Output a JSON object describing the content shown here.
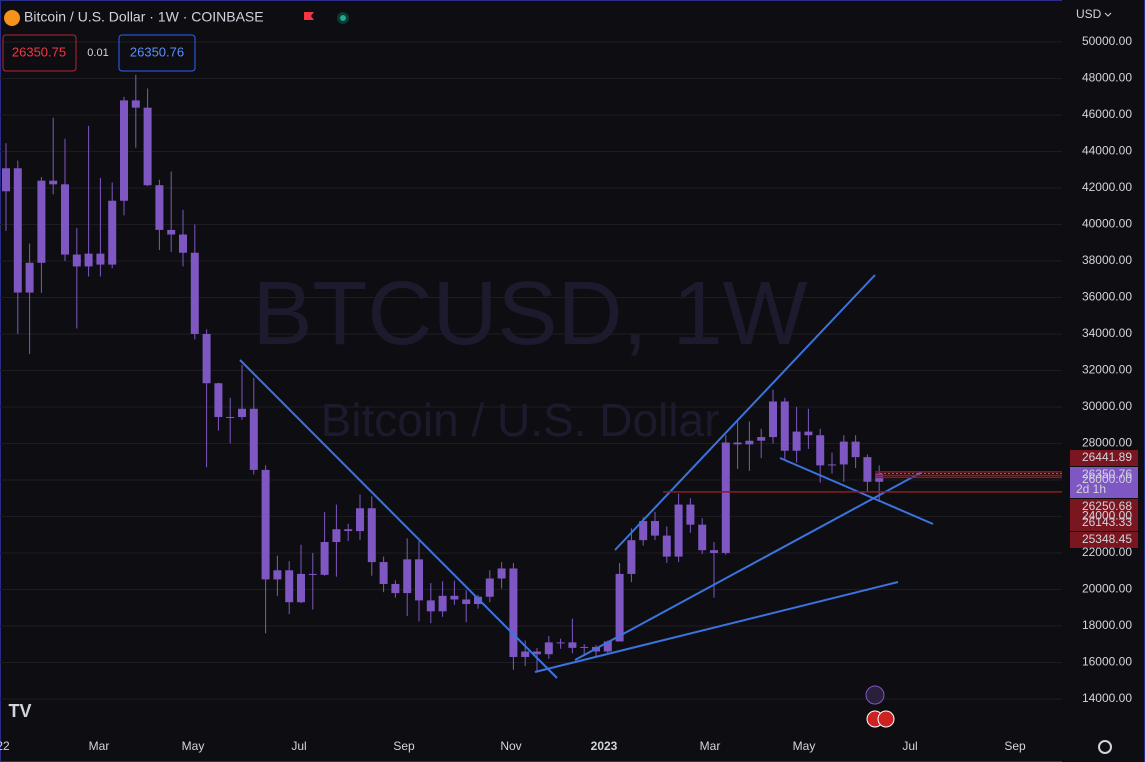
{
  "header": {
    "title": "Bitcoin / U.S. Dollar · 1W · COINBASE",
    "currency": "USD",
    "bid": 26350.75,
    "spread": 0.01,
    "ask": 26350.76
  },
  "watermark": {
    "symbol": "BTCUSD, 1W",
    "name": "Bitcoin / U.S. Dollar"
  },
  "chart_data": {
    "type": "candlestick",
    "color": "#7e57c2",
    "open": [
      41820,
      43080,
      36270,
      37900,
      42400,
      42200,
      38350,
      37700,
      38400,
      37800,
      41300,
      46800,
      46400,
      42150,
      39700,
      39450,
      38450,
      34000,
      31300,
      29450,
      29450,
      29900,
      26550,
      20550,
      21050,
      19300,
      20850,
      20800,
      22600,
      23300,
      23200,
      24450,
      21500,
      20300,
      19800,
      21650,
      19400,
      18800,
      19650,
      19450,
      19200,
      19600,
      20600,
      21150,
      16300,
      16600,
      16450,
      17100,
      17100,
      16800,
      16850,
      16600,
      17150,
      20850,
      22700,
      23750,
      22950,
      21800,
      24650,
      23550,
      22150,
      22000,
      28050,
      27950,
      28150,
      28350,
      30300,
      27600,
      28650,
      28450,
      26800,
      26850,
      28100,
      27250,
      25900
    ],
    "high": [
      44460,
      43500,
      38950,
      42600,
      45850,
      44700,
      39800,
      45400,
      42550,
      42300,
      47000,
      48200,
      47450,
      42450,
      42900,
      40800,
      40000,
      34250,
      31330,
      30500,
      32300,
      31600,
      26800,
      21850,
      21550,
      22450,
      22000,
      24250,
      24650,
      23600,
      25200,
      25100,
      21800,
      20500,
      22800,
      22650,
      20350,
      20450,
      20480,
      19950,
      19700,
      21050,
      21500,
      21450,
      17200,
      16800,
      17450,
      17300,
      18400,
      17000,
      16950,
      17200,
      21450,
      23350,
      23950,
      24250,
      23450,
      25250,
      25000,
      23900,
      22600,
      28450,
      29200,
      29200,
      28800,
      30950,
      30500,
      30000,
      29900,
      28800,
      27500,
      28450,
      28450,
      27400,
      26800
    ],
    "low": [
      39650,
      34000,
      32900,
      36250,
      41650,
      38000,
      34300,
      37150,
      37150,
      37600,
      40500,
      44200,
      42100,
      38600,
      38500,
      37700,
      33700,
      26700,
      28700,
      28000,
      29300,
      26300,
      17600,
      19650,
      18650,
      19250,
      18900,
      20750,
      20700,
      22650,
      22700,
      20750,
      19850,
      19550,
      18550,
      18250,
      18150,
      18500,
      19150,
      18200,
      18950,
      19300,
      20050,
      15600,
      15800,
      15500,
      16200,
      16750,
      16500,
      16350,
      16350,
      16500,
      17150,
      20400,
      22400,
      22700,
      21450,
      21500,
      23100,
      21950,
      19550,
      21900,
      26600,
      26500,
      27200,
      28000,
      27150,
      26950,
      27700,
      25850,
      26350,
      25900,
      26650,
      25350,
      24800
    ],
    "close": [
      43080,
      36270,
      37900,
      42400,
      42200,
      38350,
      37700,
      38400,
      37800,
      41300,
      46800,
      46400,
      42150,
      39700,
      39450,
      38450,
      34000,
      31300,
      29450,
      29450,
      29900,
      26550,
      20550,
      21050,
      19300,
      20850,
      20800,
      22600,
      23300,
      23200,
      24450,
      21500,
      20300,
      19800,
      21650,
      19400,
      18800,
      19650,
      19450,
      19200,
      19600,
      20600,
      21150,
      16300,
      16600,
      16450,
      17100,
      17100,
      16800,
      16850,
      16600,
      17150,
      20850,
      22700,
      23750,
      22950,
      21800,
      24650,
      23550,
      22150,
      22000,
      28050,
      27950,
      28150,
      28350,
      30300,
      27600,
      28650,
      28450,
      26800,
      26850,
      28100,
      27250,
      25900,
      26350.76
    ],
    "ylim": [
      11750,
      52300
    ],
    "yticks": [
      {
        "value": 14000,
        "label": "14000.00"
      },
      {
        "value": 16000,
        "label": "16000.00"
      },
      {
        "value": 18000,
        "label": "18000.00"
      },
      {
        "value": 20000,
        "label": "20000.00"
      },
      {
        "value": 22000,
        "label": "22000.00"
      },
      {
        "value": 24000,
        "label": "24000.00"
      },
      {
        "value": 26000,
        "label": "26000.00"
      },
      {
        "value": 28000,
        "label": "28000.00"
      },
      {
        "value": 30000,
        "label": "30000.00"
      },
      {
        "value": 32000,
        "label": "32000.00"
      },
      {
        "value": 34000,
        "label": "34000.00"
      },
      {
        "value": 36000,
        "label": "36000.00"
      },
      {
        "value": 38000,
        "label": "38000.00"
      },
      {
        "value": 40000,
        "label": "40000.00"
      },
      {
        "value": 42000,
        "label": "42000.00"
      },
      {
        "value": 44000,
        "label": "44000.00"
      },
      {
        "value": 46000,
        "label": "46000.00"
      },
      {
        "value": 48000,
        "label": "48000.00"
      },
      {
        "value": 50000,
        "label": "50000.00"
      }
    ],
    "x_axis_labels": [
      "22",
      "Mar",
      "May",
      "Jul",
      "Sep",
      "Nov",
      "2023",
      "Mar",
      "May",
      "Jul",
      "Sep"
    ],
    "grid": true,
    "price_lines": [
      26441.89,
      26250.68,
      26143.33,
      25348.45
    ],
    "last_price": 26350.76,
    "countdown": "2d 1h"
  }
}
